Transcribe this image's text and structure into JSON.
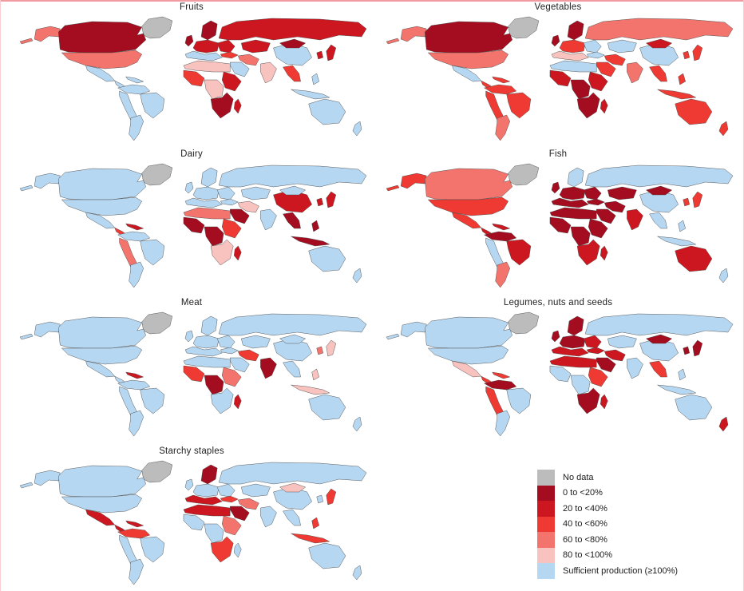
{
  "figure": {
    "type": "choropleth-small-multiples",
    "description": "Seven world maps showing domestic production sufficiency by food group"
  },
  "legend": {
    "items": [
      {
        "key": "no_data",
        "label": "No data",
        "color": "#bcbcbc"
      },
      {
        "key": "b0",
        "label": "0 to <20%",
        "color": "#a30d1f"
      },
      {
        "key": "b20",
        "label": "20 to <40%",
        "color": "#cd1720"
      },
      {
        "key": "b40",
        "label": "40 to <60%",
        "color": "#ee3a33"
      },
      {
        "key": "b60",
        "label": "60 to <80%",
        "color": "#f3746c"
      },
      {
        "key": "b80",
        "label": "80 to <100%",
        "color": "#f8c2bf"
      },
      {
        "key": "sufficient",
        "label": "Sufficient production (≥100%)",
        "color": "#b6d7f2"
      }
    ]
  },
  "maps": [
    {
      "id": "fruits",
      "title": "Fruits",
      "regions": {
        "greenland": "no_data",
        "alaska": "b60",
        "canada": "b0",
        "usa": "b60",
        "mexico": "sufficient",
        "central_america": "sufficient",
        "caribbean": "sufficient",
        "south_america_north": "sufficient",
        "brazil": "sufficient",
        "andes": "sufficient",
        "southern_cone": "sufficient",
        "scandinavia": "b0",
        "uk": "b0",
        "europe_central": "b20",
        "europe_south": "sufficient",
        "east_europe": "b20",
        "russia": "b20",
        "central_asia": "b20",
        "turkey": "b40",
        "middle_east": "b60",
        "arabia": "sufficient",
        "north_africa": "b80",
        "west_africa": "b40",
        "central_africa": "b80",
        "east_africa": "b20",
        "southern_africa": "b0",
        "madagascar": "b20",
        "india": "b80",
        "china": "sufficient",
        "mongolia": "b0",
        "se_asia": "b40",
        "indonesia": "sufficient",
        "japan": "b20",
        "korea": "b20",
        "australia": "sufficient",
        "new_zealand": "sufficient"
      }
    },
    {
      "id": "vegetables",
      "title": "Vegetables",
      "regions": {
        "greenland": "no_data",
        "alaska": "b60",
        "canada": "b0",
        "usa": "b60",
        "mexico": "sufficient",
        "central_america": "b40",
        "caribbean": "b40",
        "south_america_north": "b40",
        "brazil": "b40",
        "andes": "b40",
        "southern_cone": "b60",
        "scandinavia": "b0",
        "uk": "b0",
        "europe_central": "b40",
        "europe_south": "b80",
        "east_europe": "sufficient",
        "russia": "b60",
        "central_asia": "sufficient",
        "turkey": "sufficient",
        "middle_east": "b40",
        "arabia": "b40",
        "north_africa": "sufficient",
        "west_africa": "b20",
        "central_africa": "b0",
        "east_africa": "b20",
        "southern_africa": "b0",
        "madagascar": "b20",
        "india": "b60",
        "china": "sufficient",
        "mongolia": "b20",
        "se_asia": "b40",
        "indonesia": "b40",
        "japan": "b40",
        "korea": "b40",
        "australia": "b40",
        "new_zealand": "b40"
      }
    },
    {
      "id": "dairy",
      "title": "Dairy",
      "regions": {
        "greenland": "no_data",
        "alaska": "sufficient",
        "canada": "sufficient",
        "usa": "sufficient",
        "mexico": "sufficient",
        "central_america": "b40",
        "caribbean": "b20",
        "south_america_north": "sufficient",
        "brazil": "sufficient",
        "andes": "b60",
        "southern_cone": "sufficient",
        "scandinavia": "sufficient",
        "uk": "sufficient",
        "europe_central": "sufficient",
        "europe_south": "sufficient",
        "east_europe": "sufficient",
        "russia": "sufficient",
        "central_asia": "sufficient",
        "turkey": "sufficient",
        "middle_east": "b80",
        "arabia": "b0",
        "north_africa": "b60",
        "west_africa": "b0",
        "central_africa": "b0",
        "east_africa": "b40",
        "southern_africa": "b80",
        "madagascar": "b20",
        "india": "sufficient",
        "china": "b20",
        "mongolia": "sufficient",
        "se_asia": "b0",
        "indonesia": "b0",
        "japan": "b20",
        "korea": "b20",
        "australia": "sufficient",
        "new_zealand": "sufficient"
      }
    },
    {
      "id": "fish",
      "title": "Fish",
      "regions": {
        "greenland": "no_data",
        "alaska": "b40",
        "canada": "b60",
        "usa": "b40",
        "mexico": "b40",
        "central_america": "b20",
        "caribbean": "b20",
        "south_america_north": "b0",
        "brazil": "b20",
        "andes": "sufficient",
        "southern_cone": "b60",
        "scandinavia": "sufficient",
        "uk": "b0",
        "europe_central": "b0",
        "europe_south": "b0",
        "east_europe": "b0",
        "russia": "sufficient",
        "central_asia": "b0",
        "turkey": "b0",
        "middle_east": "b0",
        "arabia": "b0",
        "north_africa": "b0",
        "west_africa": "b0",
        "central_africa": "b0",
        "east_africa": "b0",
        "southern_africa": "b20",
        "madagascar": "b20",
        "india": "b20",
        "china": "sufficient",
        "mongolia": "b0",
        "se_asia": "sufficient",
        "indonesia": "sufficient",
        "japan": "b40",
        "korea": "b40",
        "australia": "b20",
        "new_zealand": "sufficient"
      }
    },
    {
      "id": "meat",
      "title": "Meat",
      "regions": {
        "greenland": "no_data",
        "alaska": "sufficient",
        "canada": "sufficient",
        "usa": "sufficient",
        "mexico": "sufficient",
        "central_america": "sufficient",
        "caribbean": "b20",
        "south_america_north": "sufficient",
        "brazil": "sufficient",
        "andes": "sufficient",
        "southern_cone": "sufficient",
        "scandinavia": "sufficient",
        "uk": "sufficient",
        "europe_central": "sufficient",
        "europe_south": "sufficient",
        "east_europe": "sufficient",
        "russia": "sufficient",
        "central_asia": "sufficient",
        "turkey": "sufficient",
        "middle_east": "b40",
        "arabia": "sufficient",
        "north_africa": "sufficient",
        "west_africa": "b40",
        "central_africa": "b0",
        "east_africa": "b60",
        "southern_africa": "sufficient",
        "madagascar": "b20",
        "india": "b0",
        "china": "sufficient",
        "mongolia": "sufficient",
        "se_asia": "sufficient",
        "indonesia": "b80",
        "japan": "b80",
        "korea": "b60",
        "australia": "sufficient",
        "new_zealand": "sufficient"
      }
    },
    {
      "id": "legumes",
      "title": "Legumes, nuts and seeds",
      "regions": {
        "greenland": "no_data",
        "alaska": "sufficient",
        "canada": "sufficient",
        "usa": "sufficient",
        "mexico": "b80",
        "central_america": "b40",
        "caribbean": "b40",
        "south_america_north": "b0",
        "brazil": "sufficient",
        "andes": "b40",
        "southern_cone": "sufficient",
        "scandinavia": "b0",
        "uk": "b0",
        "europe_central": "b0",
        "europe_south": "b20",
        "east_europe": "b20",
        "russia": "sufficient",
        "central_asia": "sufficient",
        "turkey": "b20",
        "middle_east": "b20",
        "arabia": "b0",
        "north_africa": "b20",
        "west_africa": "sufficient",
        "central_africa": "sufficient",
        "east_africa": "b40",
        "southern_africa": "b0",
        "madagascar": "b20",
        "india": "sufficient",
        "china": "sufficient",
        "mongolia": "b0",
        "se_asia": "b40",
        "indonesia": "sufficient",
        "japan": "b0",
        "korea": "b0",
        "australia": "sufficient",
        "new_zealand": "b20"
      }
    },
    {
      "id": "starchy_staples",
      "title": "Starchy staples",
      "regions": {
        "greenland": "no_data",
        "alaska": "sufficient",
        "canada": "sufficient",
        "usa": "sufficient",
        "mexico": "b20",
        "central_america": "b20",
        "caribbean": "b20",
        "south_america_north": "b40",
        "brazil": "sufficient",
        "andes": "sufficient",
        "southern_cone": "sufficient",
        "scandinavia": "b0",
        "uk": "sufficient",
        "europe_central": "sufficient",
        "europe_south": "b20",
        "east_europe": "sufficient",
        "russia": "sufficient",
        "central_asia": "sufficient",
        "turkey": "b40",
        "middle_east": "b60",
        "arabia": "b0",
        "north_africa": "b20",
        "west_africa": "sufficient",
        "central_africa": "sufficient",
        "east_africa": "b60",
        "southern_africa": "b40",
        "madagascar": "sufficient",
        "india": "sufficient",
        "china": "sufficient",
        "mongolia": "b80",
        "se_asia": "sufficient",
        "indonesia": "b40",
        "japan": "b40",
        "korea": "sufficient",
        "australia": "sufficient",
        "new_zealand": "sufficient"
      }
    }
  ]
}
